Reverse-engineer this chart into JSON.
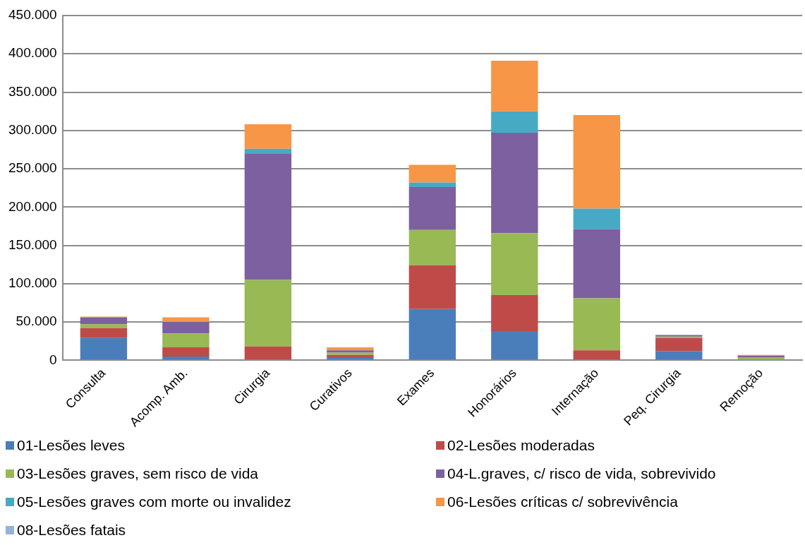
{
  "chart_data": {
    "type": "bar",
    "stacked": true,
    "categories": [
      "Consulta",
      "Acomp. Amb.",
      "Cirurgia",
      "Curativos",
      "Exames",
      "Honorários",
      "Internação",
      "Peq. Cirurgia",
      "Remoção"
    ],
    "series": [
      {
        "name": "01-Lesões leves",
        "color": "#4a7ebb",
        "values": [
          29000,
          5000,
          0,
          4000,
          67000,
          38000,
          1000,
          12000,
          0
        ]
      },
      {
        "name": "02-Lesões moderadas",
        "color": "#be4b48",
        "values": [
          13000,
          12000,
          18000,
          3000,
          57000,
          47000,
          12000,
          17000,
          1000
        ]
      },
      {
        "name": "03-Lesões graves, sem risco de vida",
        "color": "#98b954",
        "values": [
          5000,
          18000,
          87000,
          3000,
          46000,
          81000,
          68000,
          2000,
          3000
        ]
      },
      {
        "name": "04-L.graves, c/ risco de vida, sobrevivido",
        "color": "#7d60a0",
        "values": [
          9000,
          15000,
          165000,
          3000,
          56000,
          131000,
          90000,
          2000,
          2000
        ]
      },
      {
        "name": "05-Lesões graves com morte ou invalidez",
        "color": "#46aac5",
        "values": [
          0,
          0,
          6000,
          0,
          6000,
          28000,
          27000,
          0,
          0
        ]
      },
      {
        "name": "06-Lesões críticas c/ sobrevivência",
        "color": "#f79646",
        "values": [
          1000,
          6000,
          32000,
          4000,
          23000,
          66000,
          122000,
          0,
          1000
        ]
      },
      {
        "name": "08-Lesões fatais",
        "color": "#95b3d7",
        "values": [
          0,
          0,
          0,
          0,
          0,
          0,
          0,
          0,
          0
        ]
      }
    ],
    "ylim": [
      0,
      450000
    ],
    "yticks": [
      {
        "value": 0,
        "label": "0"
      },
      {
        "value": 50000,
        "label": "50.000"
      },
      {
        "value": 100000,
        "label": "100.000"
      },
      {
        "value": 150000,
        "label": "150.000"
      },
      {
        "value": 200000,
        "label": "200.000"
      },
      {
        "value": 250000,
        "label": "250.000"
      },
      {
        "value": 300000,
        "label": "300.000"
      },
      {
        "value": 350000,
        "label": "350.000"
      },
      {
        "value": 400000,
        "label": "400.000"
      },
      {
        "value": 450000,
        "label": "450.000"
      }
    ],
    "grid": "y",
    "legend": "bottom"
  }
}
